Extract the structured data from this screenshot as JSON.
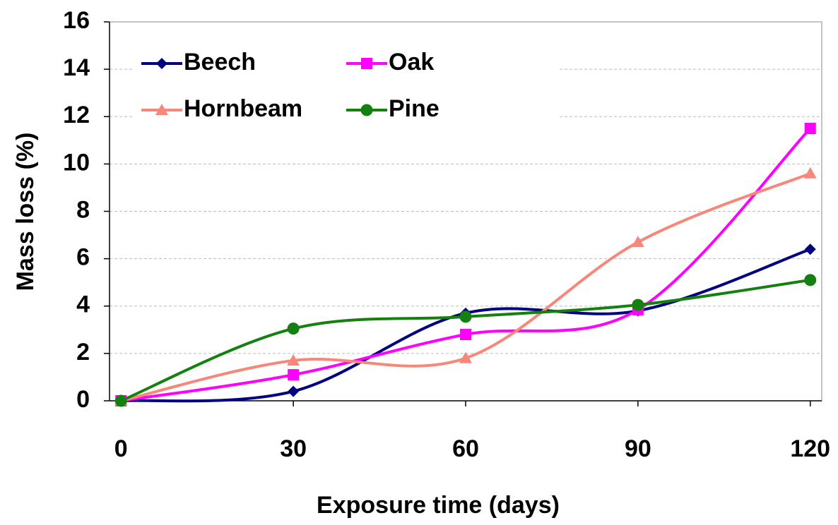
{
  "chart_data": {
    "type": "line",
    "smooth": true,
    "xlabel": "Exposure time (days)",
    "ylabel": "Mass loss (%)",
    "x": [
      0,
      30,
      60,
      90,
      120
    ],
    "series": [
      {
        "name": "Beech",
        "color": "#000080",
        "marker": "diamond",
        "values": [
          0,
          0.4,
          3.7,
          3.8,
          6.4
        ]
      },
      {
        "name": "Oak",
        "color": "#FF00FF",
        "marker": "square",
        "values": [
          0,
          1.1,
          2.8,
          3.85,
          11.5
        ]
      },
      {
        "name": "Hornbeam",
        "color": "#F7877A",
        "marker": "triangle",
        "values": [
          0,
          1.7,
          1.8,
          6.7,
          9.6
        ]
      },
      {
        "name": "Pine",
        "color": "#13800F",
        "marker": "circle",
        "values": [
          0,
          3.05,
          3.55,
          4.05,
          5.1
        ]
      }
    ],
    "xlim": [
      -2,
      122
    ],
    "xticks": [
      0,
      30,
      60,
      90,
      120
    ],
    "ylim": [
      0,
      16
    ],
    "yticks": [
      0,
      2,
      4,
      6,
      8,
      10,
      12,
      14,
      16
    ],
    "grid": true,
    "legend": "upper left"
  }
}
